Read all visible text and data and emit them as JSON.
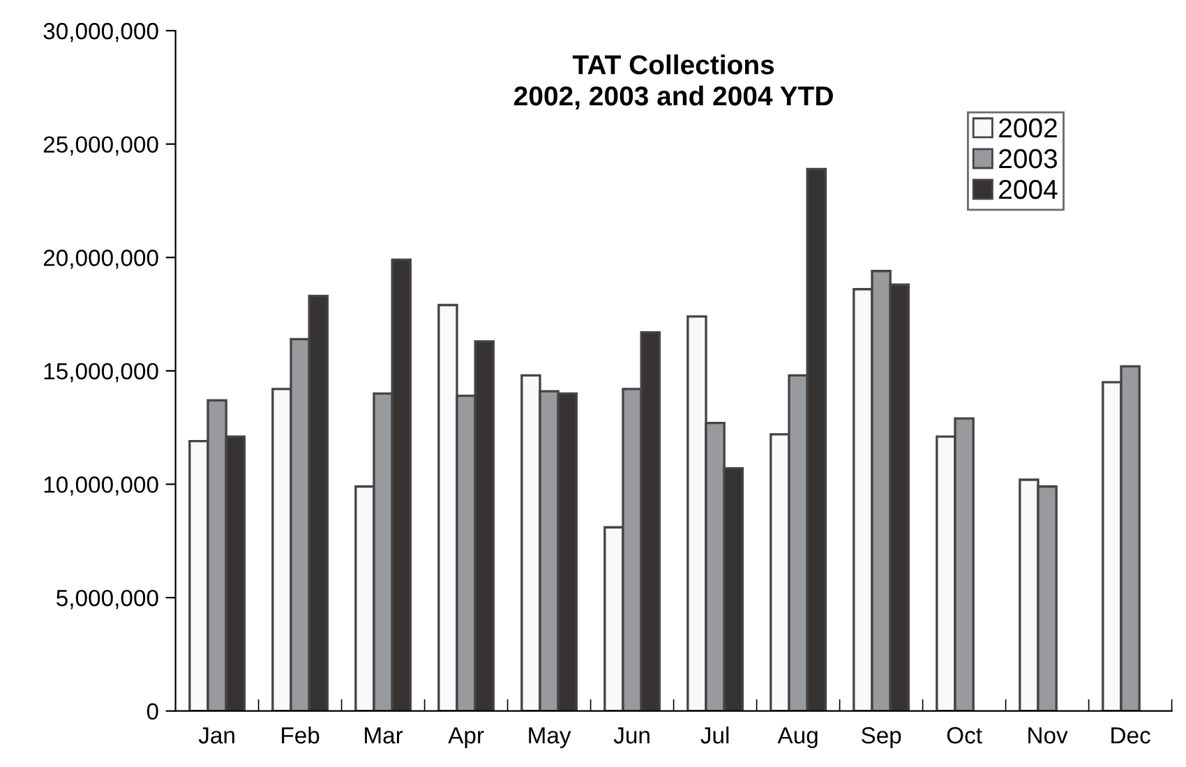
{
  "chart_data": {
    "type": "bar",
    "title": "TAT Collections\n2002, 2003 and 2004 YTD",
    "categories": [
      "Jan",
      "Feb",
      "Mar",
      "Apr",
      "May",
      "Jun",
      "Jul",
      "Aug",
      "Sep",
      "Oct",
      "Nov",
      "Dec"
    ],
    "series": [
      {
        "name": "2002",
        "color": "#f8f9fb",
        "values": [
          11900000,
          14200000,
          9900000,
          17900000,
          14800000,
          8100000,
          17400000,
          12200000,
          18600000,
          12100000,
          10200000,
          14500000
        ]
      },
      {
        "name": "2003",
        "color": "#999a9e",
        "values": [
          13700000,
          16400000,
          14000000,
          13900000,
          14100000,
          14200000,
          12700000,
          14800000,
          19400000,
          12900000,
          9900000,
          15200000
        ]
      },
      {
        "name": "2004",
        "color": "#373333",
        "values": [
          12100000,
          18300000,
          19900000,
          16300000,
          14000000,
          16700000,
          10700000,
          23900000,
          18800000,
          null,
          null,
          null
        ]
      }
    ],
    "ylim": [
      0,
      30000000
    ],
    "yticks": [
      {
        "value": 0,
        "label": "0"
      },
      {
        "value": 5000000,
        "label": "5,000,000"
      },
      {
        "value": 10000000,
        "label": "10,000,000"
      },
      {
        "value": 15000000,
        "label": "15,000,000"
      },
      {
        "value": 20000000,
        "label": "20,000,000"
      },
      {
        "value": 25000000,
        "label": "25,000,000"
      },
      {
        "value": 30000000,
        "label": "30,000,000"
      }
    ],
    "grid": false,
    "legend": "top right"
  }
}
